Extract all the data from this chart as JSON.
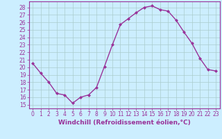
{
  "x": [
    0,
    1,
    2,
    3,
    4,
    5,
    6,
    7,
    8,
    9,
    10,
    11,
    12,
    13,
    14,
    15,
    16,
    17,
    18,
    19,
    20,
    21,
    22,
    23
  ],
  "y": [
    20.5,
    19.2,
    18.0,
    16.5,
    16.3,
    15.2,
    16.0,
    16.3,
    17.3,
    20.1,
    23.0,
    25.7,
    26.5,
    27.3,
    28.0,
    28.2,
    27.7,
    27.5,
    26.3,
    24.7,
    23.2,
    21.2,
    19.7,
    19.5
  ],
  "line_color": "#993399",
  "marker": "D",
  "marker_size": 2.0,
  "line_width": 1.0,
  "bg_color": "#cceeff",
  "grid_color": "#aacccc",
  "xlabel": "Windchill (Refroidissement éolien,°C)",
  "ylabel_ticks": [
    15,
    16,
    17,
    18,
    19,
    20,
    21,
    22,
    23,
    24,
    25,
    26,
    27,
    28
  ],
  "ylim": [
    14.5,
    28.8
  ],
  "xlim": [
    -0.5,
    23.5
  ],
  "xlabel_fontsize": 6.5,
  "tick_fontsize": 5.5,
  "label_color": "#993399"
}
